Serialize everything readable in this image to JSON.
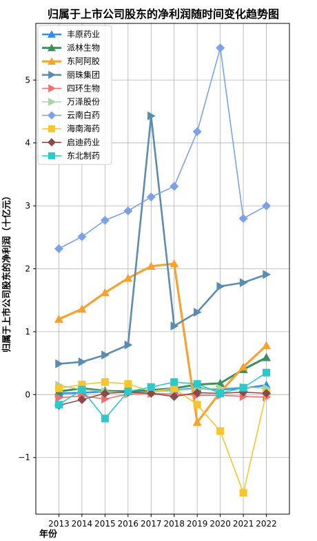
{
  "chart_data": {
    "type": "line",
    "title": "归属于上市公司股东的净利润随时间变化趋势图",
    "xlabel": "年份",
    "ylabel": "归属于上市公司股东的净利润（十亿元）",
    "x": [
      2013,
      2014,
      2015,
      2016,
      2017,
      2018,
      2019,
      2020,
      2021,
      2022
    ],
    "x_ticks": [
      "2013",
      "2014",
      "2015",
      "2016",
      "2017",
      "2018",
      "2019",
      "2020",
      "2021",
      "2022"
    ],
    "y_ticks": [
      "−1",
      "0",
      "1",
      "2",
      "3",
      "4",
      "5"
    ],
    "xlim": [
      2012.0,
      2023.0
    ],
    "ylim": [
      -1.9,
      5.9
    ],
    "grid": true,
    "legend_position": "top-left",
    "series": [
      {
        "name": "丰原药业",
        "color": "#2a8ff0",
        "marker": "triangle-up",
        "width": 2.6,
        "values": [
          0.02,
          0.03,
          0.05,
          0.06,
          0.05,
          0.07,
          0.1,
          0.08,
          0.1,
          0.15
        ]
      },
      {
        "name": "派林生物",
        "color": "#3d8f60",
        "marker": "triangle-up",
        "width": 3.0,
        "values": [
          0.05,
          0.1,
          0.06,
          0.05,
          0.07,
          0.1,
          0.16,
          0.18,
          0.4,
          0.59
        ]
      },
      {
        "name": "东阿阿胶",
        "color": "#f7a12e",
        "marker": "triangle-up",
        "width": 3.2,
        "values": [
          1.2,
          1.36,
          1.62,
          1.85,
          2.04,
          2.08,
          -0.44,
          0.04,
          0.44,
          0.78
        ]
      },
      {
        "name": "丽珠集团",
        "color": "#5a8cb2",
        "marker": "triangle-right",
        "width": 2.6,
        "values": [
          0.49,
          0.52,
          0.63,
          0.79,
          4.43,
          1.09,
          1.31,
          1.72,
          1.78,
          1.91
        ]
      },
      {
        "name": "四环生物",
        "color": "#f07070",
        "marker": "triangle-right",
        "width": 1.6,
        "values": [
          -0.05,
          -0.02,
          -0.07,
          0.01,
          0.02,
          0.01,
          -0.01,
          -0.01,
          -0.03,
          -0.04
        ]
      },
      {
        "name": "万泽股份",
        "color": "#a6d4a0",
        "marker": "triangle-right",
        "width": 1.6,
        "values": [
          0.15,
          0.08,
          0.05,
          0.03,
          0.04,
          0.07,
          0.09,
          0.1,
          0.12,
          0.1
        ]
      },
      {
        "name": "云南白药",
        "color": "#7ca1e8",
        "marker": "diamond",
        "width": 1.6,
        "values": [
          2.32,
          2.51,
          2.77,
          2.92,
          3.14,
          3.31,
          4.18,
          5.51,
          2.8,
          3.0
        ]
      },
      {
        "name": "海南海药",
        "color": "#f7c52e",
        "marker": "square",
        "width": 1.6,
        "values": [
          0.1,
          0.16,
          0.2,
          0.17,
          0.05,
          0.1,
          -0.16,
          -0.58,
          -1.56,
          0.03
        ]
      },
      {
        "name": "启迪药业",
        "color": "#8a4a4a",
        "marker": "diamond",
        "width": 1.6,
        "values": [
          -0.17,
          -0.08,
          0.02,
          0.04,
          0.02,
          -0.03,
          0.03,
          0.02,
          0.04,
          0.02
        ]
      },
      {
        "name": "东北制药",
        "color": "#2ec8c8",
        "marker": "square",
        "width": 1.6,
        "values": [
          -0.16,
          0.08,
          -0.38,
          0.05,
          0.12,
          0.2,
          0.17,
          0.02,
          0.11,
          0.35
        ]
      }
    ]
  }
}
